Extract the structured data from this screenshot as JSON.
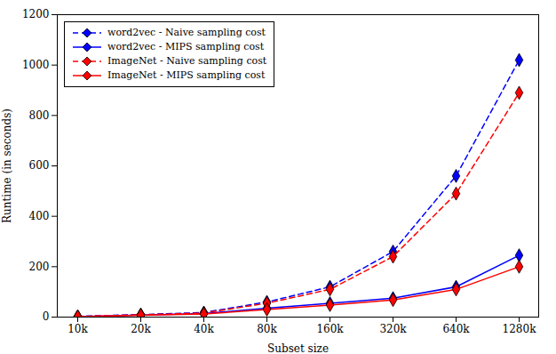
{
  "chart_data": {
    "type": "line",
    "categories": [
      "10k",
      "20k",
      "40k",
      "80k",
      "160k",
      "320k",
      "640k",
      "1280k"
    ],
    "series": [
      {
        "name": "word2vec - Naive sampling cost",
        "color": "#0000ff",
        "line_style": "dashed",
        "marker": "diamond",
        "values": [
          3,
          10,
          18,
          60,
          120,
          260,
          560,
          1020
        ]
      },
      {
        "name": "word2vec - MIPS sampling cost",
        "color": "#0000ff",
        "line_style": "solid",
        "marker": "diamond",
        "values": [
          2,
          8,
          14,
          35,
          55,
          75,
          120,
          245
        ]
      },
      {
        "name": "ImageNet - Naive sampling cost",
        "color": "#ff0000",
        "line_style": "dashed",
        "marker": "diamond",
        "values": [
          2,
          9,
          16,
          55,
          110,
          240,
          490,
          890
        ]
      },
      {
        "name": "ImageNet - MIPS sampling cost",
        "color": "#ff0000",
        "line_style": "solid",
        "marker": "diamond",
        "values": [
          2,
          7,
          12,
          30,
          48,
          68,
          110,
          200
        ]
      }
    ],
    "xlabel": "Subset size",
    "ylabel": "Runtime (in seconds)",
    "ylim": [
      0,
      1200
    ],
    "yticks": [
      0,
      200,
      400,
      600,
      800,
      1000,
      1200
    ],
    "legend": "upper left",
    "grid": false
  }
}
